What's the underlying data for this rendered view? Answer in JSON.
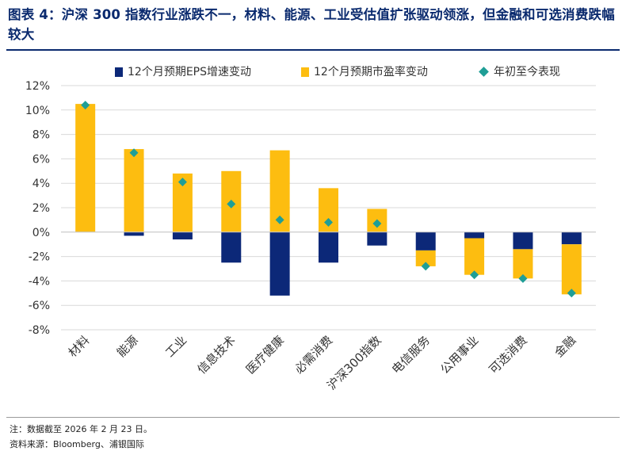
{
  "figure": {
    "title": "图表 4：沪深 300 指数行业涨跌不一，材料、能源、工业受估值扩张驱动领涨，但金融和可选消费跌幅较大",
    "note": "注：数据截至 2026 年 2 月 23 日。",
    "source": "资料来源：Bloomberg、浦银国际"
  },
  "colors": {
    "eps": "#0c2878",
    "pe": "#fdbd10",
    "ytd": "#1f9e96",
    "grid": "#d9d9d9"
  },
  "chart_data": {
    "type": "bar",
    "stacked": true,
    "categories": [
      "材料",
      "能源",
      "工业",
      "信息技术",
      "医疗健康",
      "必需消费",
      "沪深300指数",
      "电信服务",
      "公用事业",
      "可选消费",
      "金融"
    ],
    "series": [
      {
        "name": "12个月预期EPS增速变动",
        "values": [
          0.0,
          -0.3,
          -0.6,
          -2.5,
          -5.2,
          -2.5,
          -1.1,
          -1.5,
          -0.5,
          -1.4,
          -1.0
        ]
      },
      {
        "name": "12个月预期市盈率变动",
        "values": [
          10.5,
          6.8,
          4.8,
          5.0,
          6.7,
          3.6,
          1.9,
          -1.3,
          -3.0,
          -2.4,
          -4.1
        ]
      },
      {
        "name": "年初至今表现",
        "type": "scatter",
        "values": [
          10.4,
          6.5,
          4.1,
          2.3,
          1.0,
          0.8,
          0.7,
          -2.8,
          -3.5,
          -3.8,
          -5.0
        ]
      }
    ],
    "ylim": [
      -8,
      12
    ],
    "yticks": [
      -8,
      -6,
      -4,
      -2,
      0,
      2,
      4,
      6,
      8,
      10,
      12
    ],
    "ytick_labels": [
      "-8%",
      "-6%",
      "-4%",
      "-2%",
      "0%",
      "2%",
      "4%",
      "6%",
      "8%",
      "10%",
      "12%"
    ],
    "xlabel": "",
    "ylabel": "",
    "legend_position": "top",
    "grid": true
  }
}
